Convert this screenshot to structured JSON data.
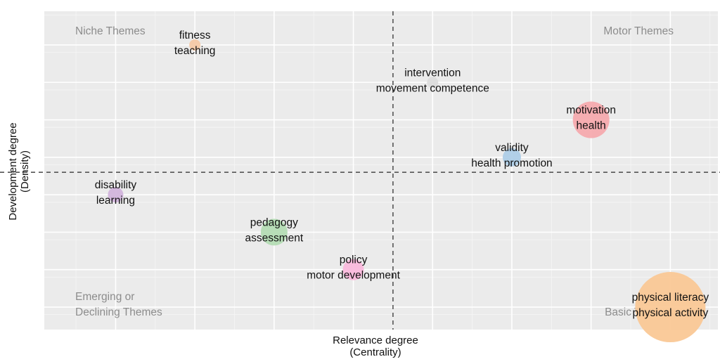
{
  "chart_data": {
    "type": "scatter",
    "title": "",
    "xlabel": [
      "Relevance degree",
      "(Centrality)"
    ],
    "ylabel": [
      "Development degree",
      "(Density)"
    ],
    "xlim": [
      0,
      8.5
    ],
    "ylim": [
      0,
      8.5
    ],
    "x_divider": 4.4,
    "y_divider": 4.2,
    "grid": true,
    "tick_labels_shown": false,
    "quadrant_labels": [
      {
        "name": "top-left",
        "lines": [
          "Niche Themes"
        ]
      },
      {
        "name": "top-right",
        "lines": [
          "Motor Themes"
        ]
      },
      {
        "name": "bottom-left",
        "lines": [
          "Emerging or",
          "Declining Themes"
        ]
      },
      {
        "name": "bottom-right",
        "lines": [
          "Basic Themes"
        ]
      }
    ],
    "points": [
      {
        "labels": [
          "fitness",
          "teaching"
        ],
        "x": 1.9,
        "y": 7.6,
        "size": 8,
        "color": "#f4c9a6"
      },
      {
        "labels": [
          "intervention",
          "movement competence"
        ],
        "x": 4.9,
        "y": 6.6,
        "size": 8,
        "color": "#dcdcdc"
      },
      {
        "labels": [
          "motivation",
          "health"
        ],
        "x": 6.9,
        "y": 5.6,
        "size": 26,
        "color": "#f5aaae"
      },
      {
        "labels": [
          "validity",
          "health promotion"
        ],
        "x": 5.9,
        "y": 4.6,
        "size": 13,
        "color": "#aecde7"
      },
      {
        "labels": [
          "disability",
          "learning"
        ],
        "x": 0.9,
        "y": 3.6,
        "size": 11,
        "color": "#d2b4dc"
      },
      {
        "labels": [
          "pedagogy",
          "assessment"
        ],
        "x": 2.9,
        "y": 2.6,
        "size": 19,
        "color": "#b4dcb4"
      },
      {
        "labels": [
          "policy",
          "motor development"
        ],
        "x": 3.9,
        "y": 1.6,
        "size": 15,
        "color": "#fab9dc"
      },
      {
        "labels": [
          "physical literacy",
          "physical activity"
        ],
        "x": 7.9,
        "y": 0.6,
        "size": 50,
        "color": "#fac896"
      }
    ]
  }
}
